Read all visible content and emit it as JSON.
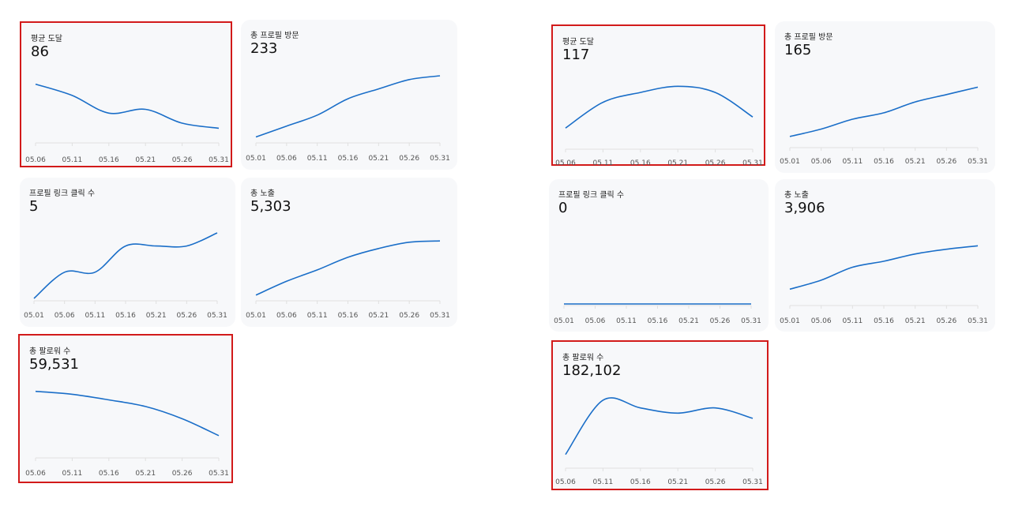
{
  "colors": {
    "line": "#1a6ec8",
    "highlight": "#d21a1a",
    "card": "#f7f8fa"
  },
  "chart_data": [
    {
      "type": "line",
      "title": "평균 도달",
      "value_label": "86",
      "categories": [
        "05.06",
        "05.11",
        "05.16",
        "05.21",
        "05.26",
        "05.31"
      ],
      "values": [
        86,
        77,
        63,
        66,
        55,
        51
      ],
      "ylim": [
        45,
        92
      ],
      "highlighted": true
    },
    {
      "type": "line",
      "title": "총 프로필 방문",
      "value_label": "233",
      "categories": [
        "05.01",
        "05.06",
        "05.11",
        "05.16",
        "05.21",
        "05.26",
        "05.31"
      ],
      "values": [
        0,
        20,
        40,
        70,
        88,
        105,
        112
      ],
      "ylim": [
        -5,
        125
      ],
      "highlighted": false
    },
    {
      "type": "line",
      "title": "프로필 링크 클릭 수",
      "value_label": "5",
      "categories": [
        "05.01",
        "05.06",
        "05.11",
        "05.16",
        "05.21",
        "05.26",
        "05.31"
      ],
      "values": [
        0,
        2,
        2,
        4,
        4,
        4,
        5
      ],
      "ylim": [
        0,
        5.6
      ],
      "highlighted": false
    },
    {
      "type": "line",
      "title": "총 노출",
      "value_label": "5,303",
      "categories": [
        "05.01",
        "05.06",
        "05.11",
        "05.16",
        "05.21",
        "05.26",
        "05.31"
      ],
      "values": [
        0,
        1100,
        2000,
        3000,
        3700,
        4200,
        4300
      ],
      "ylim": [
        -200,
        5000
      ],
      "highlighted": false
    },
    {
      "type": "line",
      "title": "총 팔로워 수",
      "value_label": "59,531",
      "categories": [
        "05.06",
        "05.11",
        "05.16",
        "05.21",
        "05.26",
        "05.31"
      ],
      "values": [
        59531,
        59500,
        59440,
        59370,
        59240,
        59060
      ],
      "ylim": [
        59000,
        59570
      ],
      "highlighted": true
    },
    {
      "type": "line",
      "title": "평균 도달",
      "value_label": "117",
      "categories": [
        "05.06",
        "05.11",
        "05.16",
        "05.21",
        "05.26",
        "05.31"
      ],
      "values": [
        80,
        101,
        109,
        114,
        109,
        89
      ],
      "ylim": [
        75,
        120
      ],
      "highlighted": true
    },
    {
      "type": "line",
      "title": "총 프로필 방문",
      "value_label": "165",
      "categories": [
        "05.01",
        "05.06",
        "05.11",
        "05.16",
        "05.21",
        "05.26",
        "05.31"
      ],
      "values": [
        0,
        15,
        35,
        48,
        70,
        85,
        100
      ],
      "ylim": [
        -5,
        115
      ],
      "highlighted": false
    },
    {
      "type": "line",
      "title": "프로필 링크 클릭 수",
      "value_label": "0",
      "categories": [
        "05.01",
        "05.06",
        "05.11",
        "05.16",
        "05.21",
        "05.26",
        "05.31"
      ],
      "values": [
        0,
        0,
        0,
        0,
        0,
        0,
        0
      ],
      "ylim": [
        0,
        1
      ],
      "highlighted": false
    },
    {
      "type": "line",
      "title": "총 노출",
      "value_label": "3,906",
      "categories": [
        "05.01",
        "05.06",
        "05.11",
        "05.16",
        "05.21",
        "05.26",
        "05.31"
      ],
      "values": [
        0,
        420,
        1020,
        1300,
        1640,
        1860,
        2020
      ],
      "ylim": [
        -100,
        2400
      ],
      "highlighted": false
    },
    {
      "type": "line",
      "title": "총 팔로워 수",
      "value_label": "182,102",
      "categories": [
        "05.06",
        "05.11",
        "05.16",
        "05.21",
        "05.26",
        "05.31"
      ],
      "values": [
        181900,
        182110,
        182080,
        182060,
        182080,
        182040
      ],
      "ylim": [
        181890,
        182125
      ],
      "highlighted": true
    }
  ]
}
